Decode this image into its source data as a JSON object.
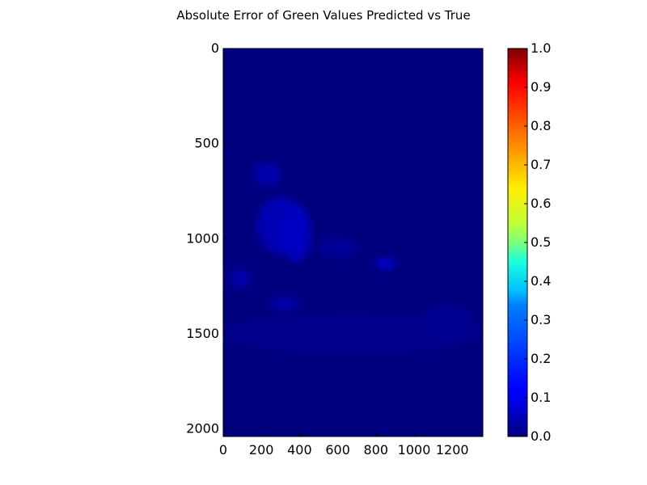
{
  "chart_data": {
    "type": "heatmap",
    "title": "Absolute Error of Green Values Predicted vs True",
    "xlabel": "",
    "ylabel": "",
    "image_extent": {
      "x": [
        0,
        1360
      ],
      "y": [
        0,
        2040
      ]
    },
    "xlim": [
      0,
      1360
    ],
    "ylim": [
      2040,
      0
    ],
    "x_ticks": [
      0,
      200,
      400,
      600,
      800,
      1000,
      1200
    ],
    "x_tick_labels": [
      "0",
      "200",
      "400",
      "600",
      "800",
      "1000",
      "1200"
    ],
    "y_ticks": [
      0,
      500,
      1000,
      1500,
      2000
    ],
    "y_tick_labels": [
      "0",
      "500",
      "1000",
      "1500",
      "2000"
    ],
    "colormap": "jet",
    "colorbar": {
      "range": [
        0.0,
        1.0
      ],
      "ticks": [
        0.0,
        0.1,
        0.2,
        0.3,
        0.4,
        0.5,
        0.6,
        0.7,
        0.8,
        0.9,
        1.0
      ],
      "tick_labels": [
        "0.0",
        "0.1",
        "0.2",
        "0.3",
        "0.4",
        "0.5",
        "0.6",
        "0.7",
        "0.8",
        "0.9",
        "1.0"
      ]
    },
    "background_value": 0.0,
    "regions": [
      {
        "x": [
          180,
          420
        ],
        "y": [
          780,
          1080
        ],
        "value": 0.06
      },
      {
        "x": [
          300,
          460
        ],
        "y": [
          820,
          1120
        ],
        "value": 0.07
      },
      {
        "x": [
          160,
          300
        ],
        "y": [
          600,
          720
        ],
        "value": 0.05
      },
      {
        "x": [
          800,
          900
        ],
        "y": [
          1100,
          1160
        ],
        "value": 0.08
      },
      {
        "x": [
          40,
          140
        ],
        "y": [
          1160,
          1260
        ],
        "value": 0.05
      },
      {
        "x": [
          240,
          400
        ],
        "y": [
          1300,
          1380
        ],
        "value": 0.04
      },
      {
        "x": [
          500,
          700
        ],
        "y": [
          1000,
          1100
        ],
        "value": 0.03
      },
      {
        "x": [
          1050,
          1300
        ],
        "y": [
          1350,
          1500
        ],
        "value": 0.02
      },
      {
        "x": [
          0,
          1360
        ],
        "y": [
          1400,
          1600
        ],
        "value": 0.015
      }
    ],
    "colors": {
      "axes_edge": "#000000",
      "background": "#00007f"
    }
  }
}
